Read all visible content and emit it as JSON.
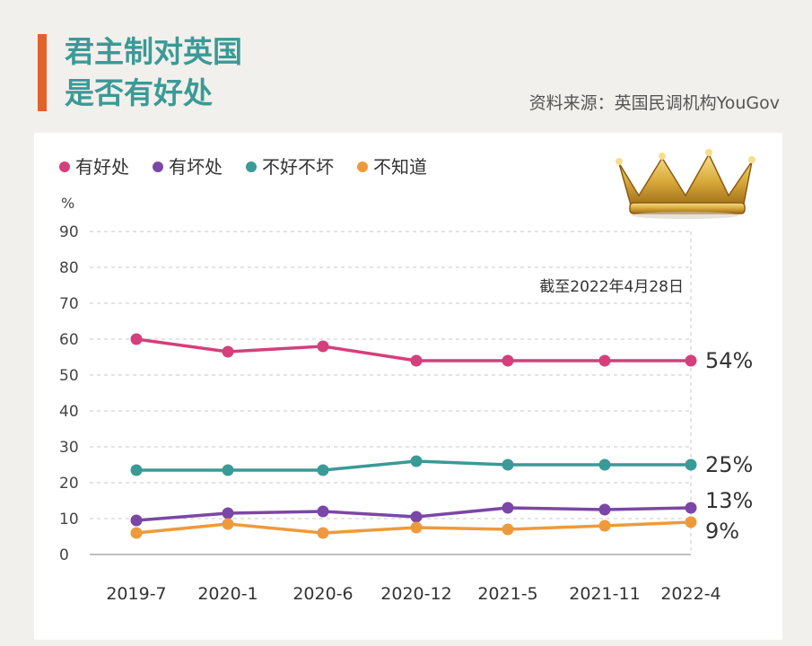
{
  "header": {
    "title_line1": "君主制对英国",
    "title_line2": "是否有好处",
    "source": "资料来源：英国民调机构YouGov"
  },
  "chart_data": {
    "type": "line",
    "title": "君主制对英国是否有好处",
    "ylabel": "%",
    "ylim": [
      0,
      90
    ],
    "yticks": [
      0,
      10,
      20,
      30,
      40,
      50,
      60,
      70,
      80,
      90
    ],
    "grid": true,
    "legend_position": "top-left",
    "annotation": "截至2022年4月28日",
    "categories": [
      "2019-7",
      "2020-1",
      "2020-6",
      "2020-12",
      "2021-5",
      "2021-11",
      "2022-4"
    ],
    "series": [
      {
        "name": "有好处",
        "color": "#d43f7c",
        "values": [
          60,
          56.5,
          58,
          54,
          54,
          54,
          54
        ],
        "end_label": "54%"
      },
      {
        "name": "有坏处",
        "color": "#7b47a6",
        "values": [
          9.5,
          11.5,
          12,
          10.5,
          13,
          12.5,
          13
        ],
        "end_label": "13%"
      },
      {
        "name": "不好不坏",
        "color": "#3a9a96",
        "values": [
          23.5,
          23.5,
          23.5,
          26,
          25,
          25,
          25
        ],
        "end_label": "25%"
      },
      {
        "name": "不知道",
        "color": "#ef9a3a",
        "values": [
          6,
          8.5,
          6,
          7.5,
          7,
          8,
          9
        ],
        "end_label": "9%"
      }
    ]
  }
}
